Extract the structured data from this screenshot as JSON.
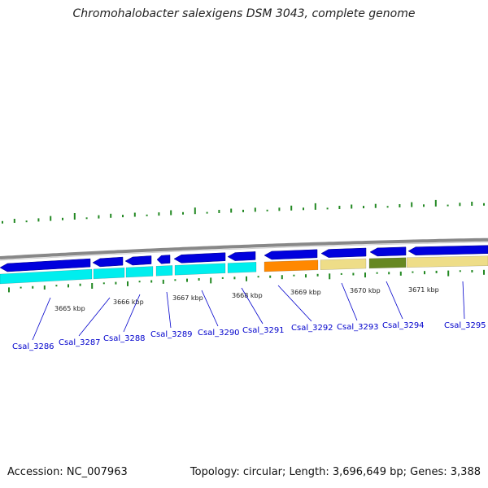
{
  "title": "Chromohalobacter salexigens DSM 3043, complete genome",
  "accession": "Accession: NC_007963",
  "topology": "Topology: circular; Length: 3,696,649 bp; Genes: 3,388",
  "colors": {
    "forward_gene": "#0000dd",
    "reverse_cds": "#00eeee",
    "orange_cds": "#ff8800",
    "khaki_cds": "#eedd88",
    "olive_cds": "#668822",
    "gc_tick": "#228822",
    "backbone": "#888888",
    "label": "#0000cc"
  },
  "kbp_labels": [
    "3665 kbp",
    "3666 kbp",
    "3667 kbp",
    "3668 kbp",
    "3669 kbp",
    "3670 kbp",
    "3671 kbp"
  ],
  "gene_labels": [
    "Csal_3286",
    "Csal_3287",
    "Csal_3288",
    "Csal_3289",
    "Csal_3290",
    "Csal_3291",
    "Csal_3292",
    "Csal_3293",
    "Csal_3294",
    "Csal_3295"
  ]
}
